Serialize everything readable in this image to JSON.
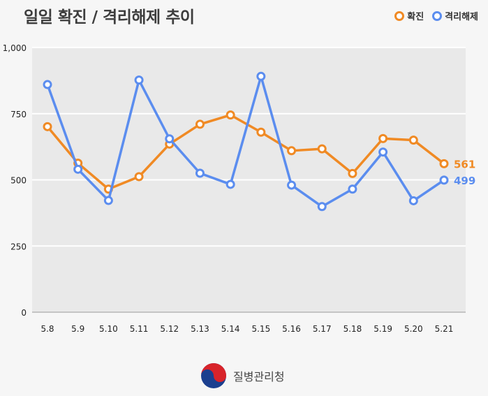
{
  "chart_data": {
    "type": "line",
    "title": "일일 확진 / 격리해제 추이",
    "categories": [
      "5.8",
      "5.9",
      "5.10",
      "5.11",
      "5.12",
      "5.13",
      "5.14",
      "5.15",
      "5.16",
      "5.17",
      "5.18",
      "5.19",
      "5.20",
      "5.21"
    ],
    "ylim": [
      0,
      1000
    ],
    "yticks": [
      0,
      250,
      500,
      750,
      1000
    ],
    "ytick_labels": [
      "0",
      "250",
      "500",
      "750",
      "1,000"
    ],
    "xlabel": "",
    "ylabel": "",
    "grid": true,
    "legend_position": "top-right",
    "series": [
      {
        "name": "확진",
        "color": "#f08a24",
        "values": [
          701,
          563,
          465,
          512,
          635,
          710,
          745,
          680,
          610,
          617,
          524,
          656,
          650,
          561
        ],
        "end_label": "561"
      },
      {
        "name": "격리해제",
        "color": "#5b8def",
        "values": [
          860,
          540,
          422,
          877,
          655,
          525,
          483,
          891,
          480,
          399,
          465,
          605,
          421,
          499
        ],
        "end_label": "499"
      }
    ]
  },
  "footer": {
    "org_name": "질병관리청"
  }
}
